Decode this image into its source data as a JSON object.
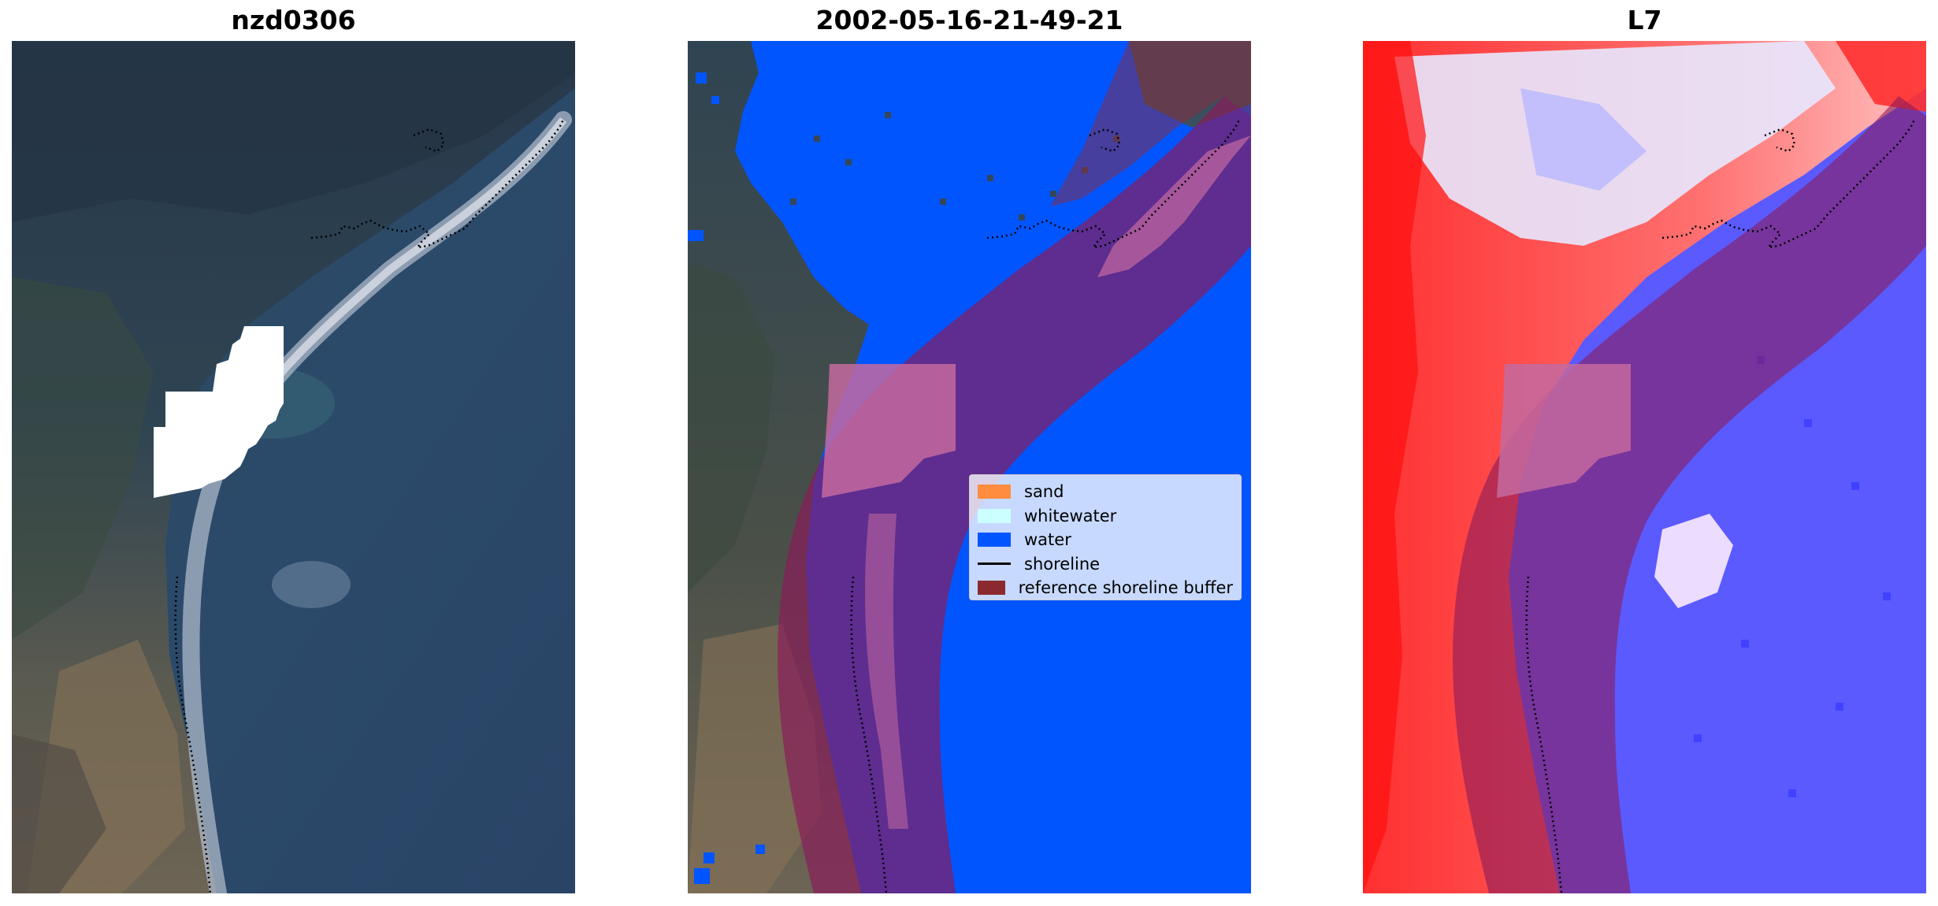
{
  "panels": [
    {
      "title": "nzd0306"
    },
    {
      "title": "2002-05-16-21-49-21"
    },
    {
      "title": "L7"
    }
  ],
  "legend": {
    "items": [
      {
        "label": "sand",
        "color": "#ff8c3f"
      },
      {
        "label": "whitewater",
        "color": "#ccffff"
      },
      {
        "label": "water",
        "color": "#0055ff"
      },
      {
        "label": "shoreline",
        "color": "#000000"
      },
      {
        "label": "reference shoreline buffer",
        "color": "#8b2a2e"
      }
    ]
  },
  "colors": {
    "land_dark": "#2f3e4c",
    "ocean": "#2d4766",
    "buffer": "#8b1a3c",
    "no_data_mask": "#ffffff",
    "index_positive": "#ff0000",
    "index_negative": "#0000ff"
  }
}
